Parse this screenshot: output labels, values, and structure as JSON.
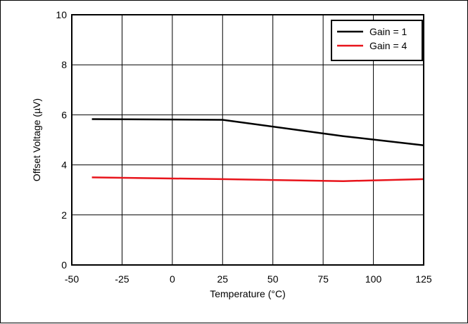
{
  "chart_data": {
    "type": "line",
    "title": "",
    "xlabel": "Temperature (°C)",
    "ylabel": "Offset Voltage (µV)",
    "xlim": [
      -50,
      125
    ],
    "ylim": [
      0,
      10
    ],
    "x_ticks": [
      "-50",
      "-25",
      "0",
      "25",
      "50",
      "75",
      "100",
      "125"
    ],
    "y_ticks": [
      "0",
      "2",
      "4",
      "6",
      "8",
      "10"
    ],
    "grid": true,
    "legend_position": "top-right",
    "series": [
      {
        "name": "Gain = 1",
        "color": "#000000",
        "x": [
          -40,
          25,
          85,
          125
        ],
        "y": [
          5.83,
          5.8,
          5.15,
          4.78
        ]
      },
      {
        "name": "Gain = 4",
        "color": "#e8141b",
        "x": [
          -40,
          25,
          85,
          125
        ],
        "y": [
          3.5,
          3.43,
          3.35,
          3.43
        ]
      }
    ]
  }
}
